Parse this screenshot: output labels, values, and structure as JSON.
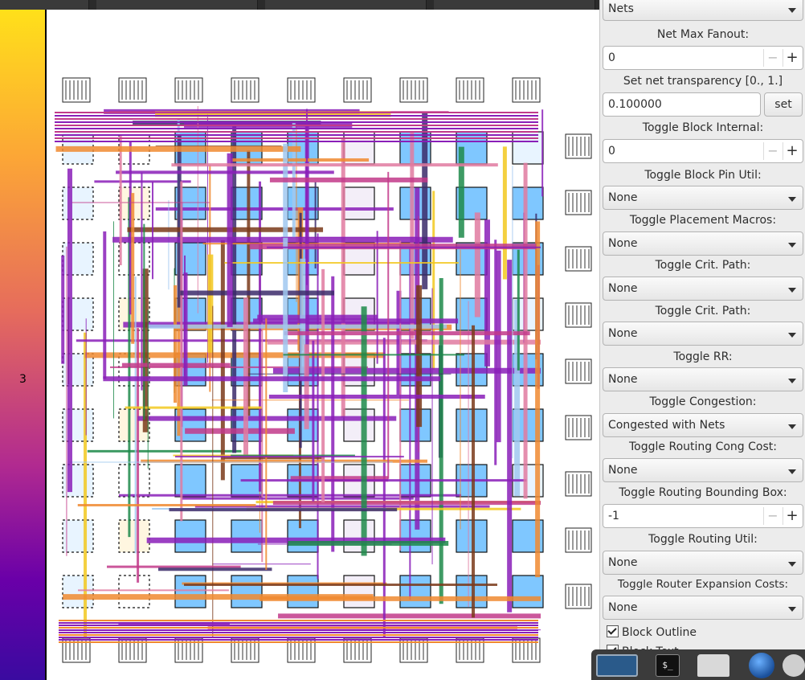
{
  "colorbar": {
    "value_label": "3"
  },
  "panel": {
    "top_combo": "Nets",
    "net_max_fanout": {
      "label": "Net Max Fanout:",
      "value": "0"
    },
    "net_transparency": {
      "label": "Set net transparency [0., 1.]",
      "value": "0.100000",
      "button": "set"
    },
    "block_internal": {
      "label": "Toggle Block Internal:",
      "value": "0"
    },
    "block_pin_util": {
      "label": "Toggle Block Pin Util:",
      "value": "None"
    },
    "placement_macros": {
      "label": "Toggle Placement Macros:",
      "value": "None"
    },
    "crit_path_1": {
      "label": "Toggle Crit. Path:",
      "value": "None"
    },
    "crit_path_2": {
      "label": "Toggle Crit. Path:",
      "value": "None"
    },
    "rr": {
      "label": "Toggle RR:",
      "value": "None"
    },
    "congestion": {
      "label": "Toggle Congestion:",
      "value": "Congested with Nets"
    },
    "routing_cong_cost": {
      "label": "Toggle Routing Cong Cost:",
      "value": "None"
    },
    "routing_bbox": {
      "label": "Toggle Routing Bounding Box:",
      "value": "-1"
    },
    "routing_util": {
      "label": "Toggle Routing Util:",
      "value": "None"
    },
    "router_expansion": {
      "label": "Toggle Router Expansion Costs:",
      "value": "None"
    },
    "block_outline": {
      "label": "Block Outline",
      "checked": true
    },
    "block_text": {
      "label": "Block Text",
      "checked": true
    }
  },
  "dock": {
    "terminal_glyph": "$_"
  },
  "colors": {
    "clb": "#7fc7ff",
    "net_purple": "#8a1fb8",
    "net_magenta": "#c23a8a",
    "net_orange": "#f08a30",
    "net_yellow": "#f2c81e",
    "colorbar_top": "#ffe01a",
    "colorbar_bottom": "#3a0aa0"
  }
}
